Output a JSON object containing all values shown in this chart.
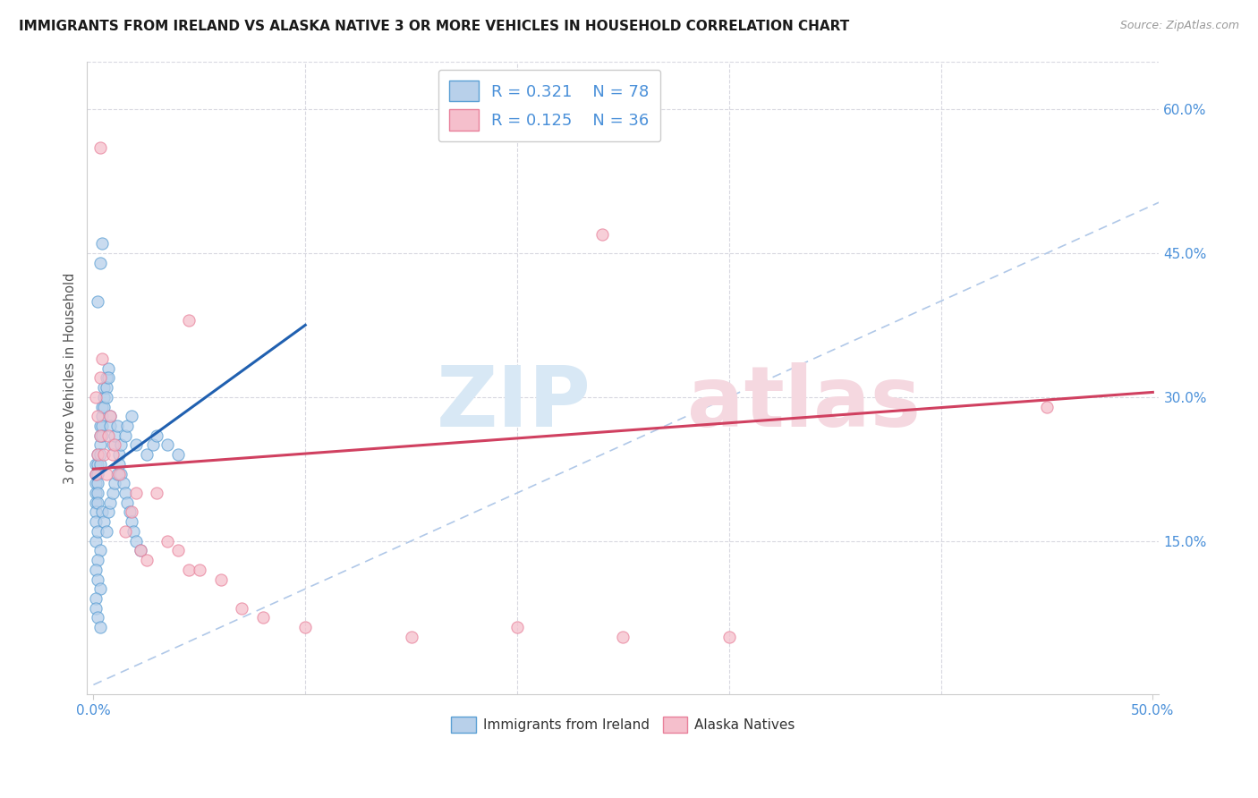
{
  "title": "IMMIGRANTS FROM IRELAND VS ALASKA NATIVE 3 OR MORE VEHICLES IN HOUSEHOLD CORRELATION CHART",
  "source": "Source: ZipAtlas.com",
  "ylabel": "3 or more Vehicles in Household",
  "legend_r1": "0.321",
  "legend_n1": "78",
  "legend_r2": "0.125",
  "legend_n2": "36",
  "legend_label1": "Immigrants from Ireland",
  "legend_label2": "Alaska Natives",
  "color_blue_fill": "#b8d0ea",
  "color_blue_edge": "#5a9fd4",
  "color_pink_fill": "#f5bfcc",
  "color_pink_edge": "#e8809a",
  "color_blue_text": "#4a90d9",
  "color_pink_text": "#e06080",
  "color_trendline_blue": "#2060b0",
  "color_trendline_pink": "#d04060",
  "color_diagonal": "#b0c8e8",
  "color_grid": "#d8d8e0",
  "xlim": [
    0.0,
    0.5
  ],
  "ylim": [
    0.0,
    0.65
  ],
  "ytick_positions": [
    0.15,
    0.3,
    0.45,
    0.6
  ],
  "ytick_labels": [
    "15.0%",
    "30.0%",
    "45.0%",
    "60.0%"
  ],
  "xtick_positions": [
    0.0,
    0.5
  ],
  "xtick_labels": [
    "0.0%",
    "50.0%"
  ],
  "blue_trendline_x": [
    0.0,
    0.1
  ],
  "blue_trendline_y": [
    0.215,
    0.375
  ],
  "pink_trendline_x": [
    0.0,
    0.5
  ],
  "pink_trendline_y": [
    0.225,
    0.305
  ],
  "blue_x": [
    0.001,
    0.001,
    0.001,
    0.001,
    0.001,
    0.001,
    0.001,
    0.002,
    0.002,
    0.002,
    0.002,
    0.002,
    0.002,
    0.003,
    0.003,
    0.003,
    0.003,
    0.003,
    0.004,
    0.004,
    0.004,
    0.004,
    0.005,
    0.005,
    0.005,
    0.006,
    0.006,
    0.006,
    0.007,
    0.007,
    0.008,
    0.008,
    0.009,
    0.01,
    0.011,
    0.012,
    0.013,
    0.015,
    0.016,
    0.018,
    0.02,
    0.025,
    0.028,
    0.03,
    0.035,
    0.04,
    0.001,
    0.002,
    0.003,
    0.002,
    0.001,
    0.002,
    0.003,
    0.004,
    0.005,
    0.006,
    0.007,
    0.008,
    0.009,
    0.01,
    0.011,
    0.012,
    0.013,
    0.014,
    0.015,
    0.016,
    0.017,
    0.018,
    0.019,
    0.02,
    0.022,
    0.003,
    0.004,
    0.002,
    0.001,
    0.001,
    0.002,
    0.003
  ],
  "blue_y": [
    0.21,
    0.22,
    0.23,
    0.2,
    0.19,
    0.18,
    0.17,
    0.22,
    0.23,
    0.24,
    0.21,
    0.2,
    0.19,
    0.25,
    0.26,
    0.27,
    0.24,
    0.23,
    0.28,
    0.29,
    0.27,
    0.26,
    0.3,
    0.29,
    0.31,
    0.32,
    0.31,
    0.3,
    0.33,
    0.32,
    0.28,
    0.27,
    0.25,
    0.26,
    0.27,
    0.24,
    0.25,
    0.26,
    0.27,
    0.28,
    0.25,
    0.24,
    0.25,
    0.26,
    0.25,
    0.24,
    0.15,
    0.16,
    0.14,
    0.13,
    0.12,
    0.11,
    0.1,
    0.18,
    0.17,
    0.16,
    0.18,
    0.19,
    0.2,
    0.21,
    0.22,
    0.23,
    0.22,
    0.21,
    0.2,
    0.19,
    0.18,
    0.17,
    0.16,
    0.15,
    0.14,
    0.44,
    0.46,
    0.4,
    0.09,
    0.08,
    0.07,
    0.06
  ],
  "pink_x": [
    0.001,
    0.001,
    0.002,
    0.002,
    0.003,
    0.003,
    0.004,
    0.005,
    0.006,
    0.007,
    0.008,
    0.009,
    0.01,
    0.012,
    0.015,
    0.018,
    0.02,
    0.022,
    0.025,
    0.03,
    0.035,
    0.04,
    0.045,
    0.05,
    0.06,
    0.07,
    0.08,
    0.1,
    0.15,
    0.2,
    0.25,
    0.3,
    0.003,
    0.045,
    0.45,
    0.24
  ],
  "pink_y": [
    0.22,
    0.3,
    0.28,
    0.24,
    0.32,
    0.26,
    0.34,
    0.24,
    0.22,
    0.26,
    0.28,
    0.24,
    0.25,
    0.22,
    0.16,
    0.18,
    0.2,
    0.14,
    0.13,
    0.2,
    0.15,
    0.14,
    0.12,
    0.12,
    0.11,
    0.08,
    0.07,
    0.06,
    0.05,
    0.06,
    0.05,
    0.05,
    0.56,
    0.38,
    0.29,
    0.47
  ]
}
